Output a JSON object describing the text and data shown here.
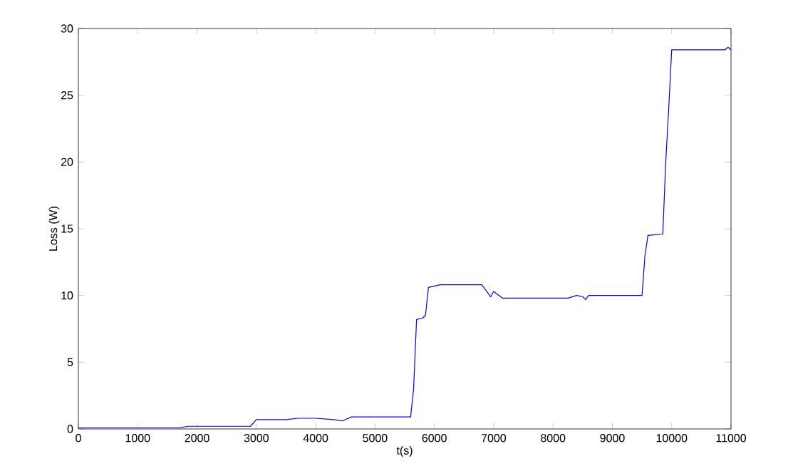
{
  "chart_data": {
    "type": "line",
    "xlabel": "t(s)",
    "ylabel": "Loss (W)",
    "xlim": [
      0,
      11000
    ],
    "ylim": [
      0,
      30
    ],
    "xticks": [
      0,
      1000,
      2000,
      3000,
      4000,
      5000,
      6000,
      7000,
      8000,
      9000,
      10000,
      11000
    ],
    "yticks": [
      0,
      5,
      10,
      15,
      20,
      25,
      30
    ],
    "grid": false,
    "marker": "none",
    "line_style": "solid",
    "series": [
      {
        "color": "#0000ff",
        "x": [
          0,
          1700,
          1850,
          2900,
          3000,
          3500,
          3700,
          4000,
          4300,
          4450,
          4600,
          5600,
          5650,
          5700,
          5800,
          5850,
          5900,
          6000,
          6100,
          6800,
          6900,
          6950,
          7000,
          7150,
          8250,
          8400,
          8500,
          8550,
          8600,
          9500,
          9550,
          9600,
          9850,
          9900,
          9950,
          10000,
          10900,
          10950,
          11000
        ],
        "values": [
          0.08,
          0.08,
          0.2,
          0.2,
          0.7,
          0.7,
          0.8,
          0.8,
          0.7,
          0.6,
          0.9,
          0.9,
          3,
          8.2,
          8.3,
          8.5,
          10.6,
          10.7,
          10.8,
          10.8,
          10.2,
          9.9,
          10.3,
          9.8,
          9.8,
          10,
          9.9,
          9.7,
          10,
          10,
          13,
          14.5,
          14.6,
          20,
          24,
          28.4,
          28.4,
          28.6,
          28.4
        ]
      }
    ]
  }
}
